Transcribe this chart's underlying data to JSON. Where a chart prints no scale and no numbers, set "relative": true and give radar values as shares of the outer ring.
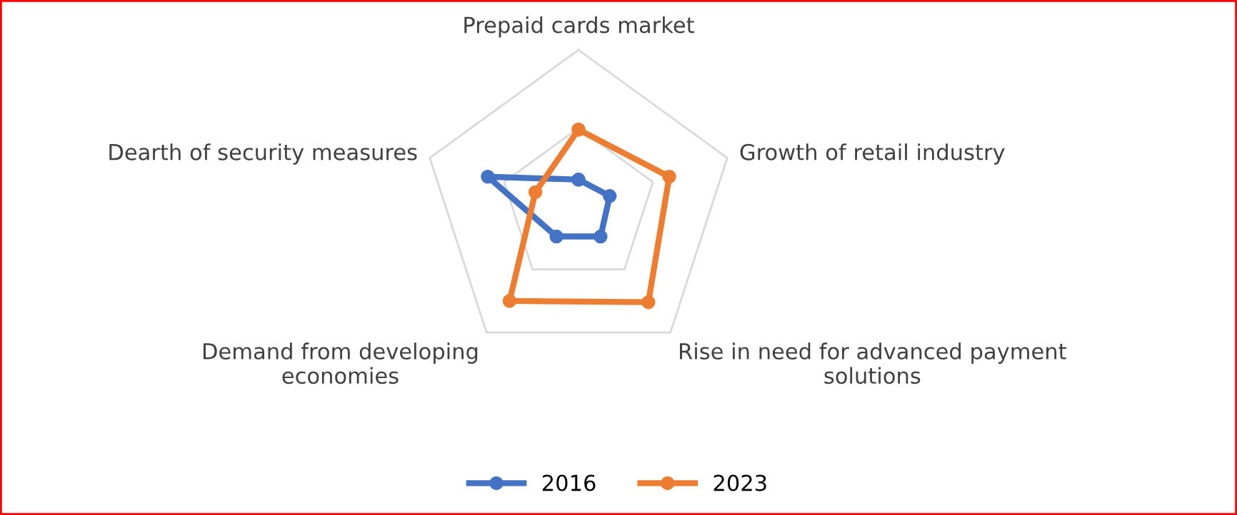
{
  "chart_data": {
    "type": "radar",
    "relative": true,
    "grid": true,
    "legend": "bottom",
    "marker": "circle",
    "line_style": "solid",
    "categories": [
      "Prepaid cards market",
      "Growth of retail industry",
      "Rise in need for advanced payment\nsolutions",
      "Demand from developing\neconomies",
      "Dearth of security measures"
    ],
    "series": [
      {
        "name": "2016",
        "color": "#4472c4",
        "values": [
          0.17,
          0.21,
          0.24,
          0.24,
          0.61
        ]
      },
      {
        "name": "2023",
        "color": "#ed7d31",
        "values": [
          0.49,
          0.61,
          0.76,
          0.75,
          0.29
        ]
      }
    ]
  }
}
